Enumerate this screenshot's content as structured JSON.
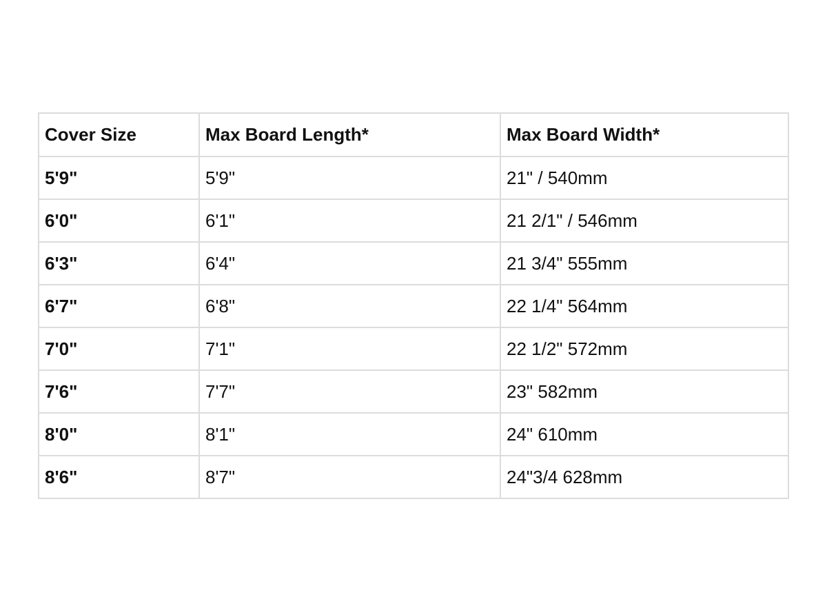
{
  "table": {
    "headers": [
      "Cover Size",
      "Max Board Length*",
      "Max Board Width*"
    ],
    "rows": [
      [
        "5'9\"",
        "5'9\"",
        "21\" / 540mm"
      ],
      [
        "6'0\"",
        "6'1\"",
        "21 2/1\" / 546mm"
      ],
      [
        "6'3\"",
        "6'4\"",
        "21 3/4\" 555mm"
      ],
      [
        "6'7\"",
        "6'8\"",
        "22 1/4\" 564mm"
      ],
      [
        "7'0\"",
        "7'1\"",
        "22 1/2\" 572mm"
      ],
      [
        "7'6\"",
        "7'7\"",
        "23\" 582mm"
      ],
      [
        "8'0\"",
        "8'1\"",
        "24\" 610mm"
      ],
      [
        "8'6\"",
        "8'7\"",
        "24\"3/4 628mm"
      ]
    ]
  }
}
